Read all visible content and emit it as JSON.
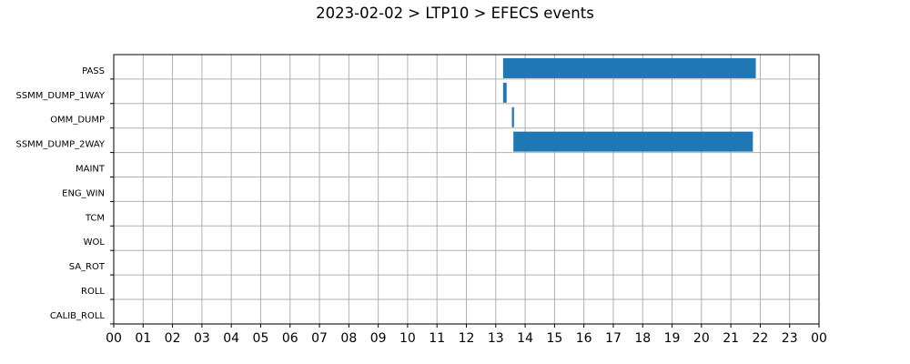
{
  "chart_data": {
    "type": "gantt",
    "title": "2023-02-02 > LTP10 > EFECS events",
    "xlabel": "",
    "ylabel": "",
    "x_unit": "hour",
    "xlim": [
      0,
      24
    ],
    "x_tick_labels": [
      "00",
      "01",
      "02",
      "03",
      "04",
      "05",
      "06",
      "07",
      "08",
      "09",
      "10",
      "11",
      "12",
      "13",
      "14",
      "15",
      "16",
      "17",
      "18",
      "19",
      "20",
      "21",
      "22",
      "23",
      "00"
    ],
    "categories": [
      "PASS",
      "SSMM_DUMP_1WAY",
      "OMM_DUMP",
      "SSMM_DUMP_2WAY",
      "MAINT",
      "ENG_WIN",
      "TCM",
      "WOL",
      "SA_ROT",
      "ROLL",
      "CALIB_ROLL"
    ],
    "series": [
      {
        "category": "PASS",
        "intervals": [
          [
            13.25,
            21.85
          ]
        ]
      },
      {
        "category": "SSMM_DUMP_1WAY",
        "intervals": [
          [
            13.25,
            13.37
          ]
        ]
      },
      {
        "category": "OMM_DUMP",
        "intervals": [
          [
            13.55,
            13.62
          ]
        ]
      },
      {
        "category": "SSMM_DUMP_2WAY",
        "intervals": [
          [
            13.6,
            21.75
          ]
        ]
      },
      {
        "category": "MAINT",
        "intervals": []
      },
      {
        "category": "ENG_WIN",
        "intervals": []
      },
      {
        "category": "TCM",
        "intervals": []
      },
      {
        "category": "WOL",
        "intervals": []
      },
      {
        "category": "SA_ROT",
        "intervals": []
      },
      {
        "category": "ROLL",
        "intervals": []
      },
      {
        "category": "CALIB_ROLL",
        "intervals": []
      }
    ],
    "bar_color": "#1f77b4",
    "grid": true,
    "grid_color": "#b0b0b0"
  }
}
